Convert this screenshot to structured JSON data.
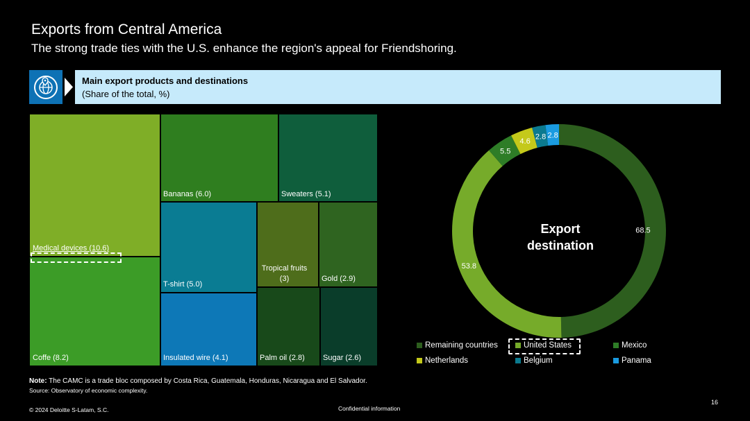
{
  "header": {
    "title": "Exports from Central America",
    "subtitle": "The strong trade ties with the U.S. enhance the region's appeal for Friendshoring."
  },
  "banner": {
    "icon": "globe-location-icon",
    "title": "Main export products and destinations",
    "subtitle": "(Share of the total, %)"
  },
  "chart_data": [
    {
      "type": "treemap",
      "items": [
        {
          "name": "Medical devices",
          "value": 10.6,
          "label": "Medical devices (10.6)",
          "color": "#7fae27"
        },
        {
          "name": "Coffe",
          "value": 8.2,
          "label": "Coffe (8.2)",
          "color": "#3c9c27"
        },
        {
          "name": "Bananas",
          "value": 6.0,
          "label": "Bananas (6.0)",
          "color": "#2f7e1f"
        },
        {
          "name": "Sweaters",
          "value": 5.1,
          "label": "Sweaters (5.1)",
          "color": "#0f5e3c"
        },
        {
          "name": "T-shirt",
          "value": 5.0,
          "label": "T-shirt (5.0)",
          "color": "#0a7c93"
        },
        {
          "name": "Insulated wire",
          "value": 4.1,
          "label": "Insulated wire (4.1)",
          "color": "#0d78b7"
        },
        {
          "name": "Tropical fruits",
          "value": 3.0,
          "label": "Tropical fruits (3.0)",
          "color": "#4e6d1b"
        },
        {
          "name": "Gold",
          "value": 2.9,
          "label": "Gold (2.9)",
          "color": "#2f6420"
        },
        {
          "name": "Palm oil",
          "value": 2.8,
          "label": "Palm oil (2.8)",
          "color": "#18491a"
        },
        {
          "name": "Sugar",
          "value": 2.6,
          "label": "Sugar (2.6)",
          "color": "#0a3d2a"
        }
      ],
      "highlighted": "Medical devices"
    },
    {
      "type": "pie",
      "subtype": "donut",
      "center_label": "Export destination",
      "series": [
        {
          "name": "Remaining countries",
          "value": 68.5,
          "color": "#2d5e1e"
        },
        {
          "name": "United States",
          "value": 53.8,
          "color": "#76ab2a"
        },
        {
          "name": "Mexico",
          "value": 5.5,
          "color": "#2e7d27"
        },
        {
          "name": "Netherlands",
          "value": 4.6,
          "color": "#c4c91a"
        },
        {
          "name": "Belgium",
          "value": 2.8,
          "color": "#0b7a8f"
        },
        {
          "name": "Panama",
          "value": 2.8,
          "color": "#1a9be0"
        }
      ],
      "highlighted": "United States",
      "legend_position": "bottom"
    }
  ],
  "footer": {
    "note_label": "Note:",
    "note_text": "The CAMC is a trade bloc composed by Costa Rica, Guatemala, Honduras, Nicaragua and El Salvador.",
    "source": "Source: Observatory of economic complexity.",
    "copyright": "© 2024 Deloitte S-Latam, S.C.",
    "confidential": "Confidential information",
    "page_number": "16"
  }
}
